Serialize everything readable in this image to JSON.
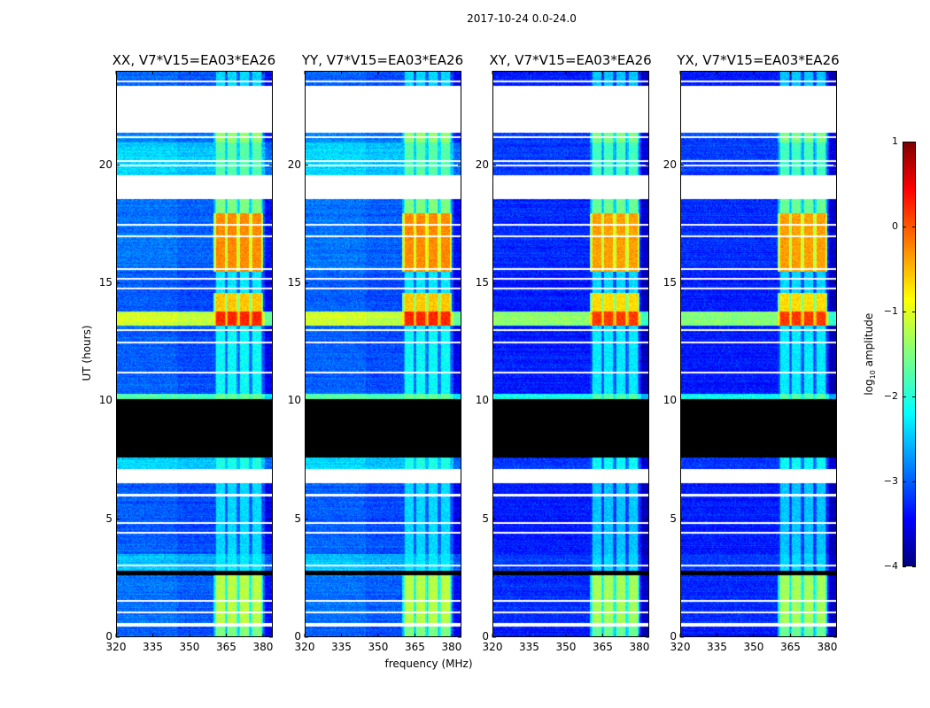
{
  "figure_title": "2017-10-24 0.0-24.0",
  "chart_data": {
    "type": "heatmap",
    "title": "2017-10-24 0.0-24.0",
    "xlabel": "frequency (MHz)",
    "ylabel": "UT (hours)",
    "xlim": [
      320,
      384
    ],
    "ylim": [
      0,
      24
    ],
    "xticks": [
      320,
      335,
      350,
      365,
      380
    ],
    "yticks": [
      0,
      5,
      10,
      15,
      20
    ],
    "panels": [
      {
        "title": "XX, V7*V15=EA03*EA26",
        "pol": "XX",
        "bg_offset": 0
      },
      {
        "title": "YY, V7*V15=EA03*EA26",
        "pol": "YY",
        "bg_offset": 0
      },
      {
        "title": "XY, V7*V15=EA03*EA26",
        "pol": "XY",
        "bg_offset": -0.25
      },
      {
        "title": "YX, V7*V15=EA03*EA26",
        "pol": "YX",
        "bg_offset": -0.25
      }
    ],
    "rfi_channels_mhz": [
      [
        360.5,
        365
      ],
      [
        365.3,
        370
      ],
      [
        370.3,
        375
      ],
      [
        375.3,
        380
      ]
    ],
    "segments_hours": [
      {
        "start": 0,
        "end": 0.4,
        "bg": -3.0,
        "rfi": -1.5
      },
      {
        "start": 0.4,
        "end": 0.55,
        "flag": "blank"
      },
      {
        "start": 0.55,
        "end": 2.6,
        "bg": -2.9,
        "rfi": -1.2
      },
      {
        "start": 2.6,
        "end": 2.8,
        "flag": "zero"
      },
      {
        "start": 2.8,
        "end": 3.5,
        "bg": -2.5,
        "rfi": -2.2
      },
      {
        "start": 3.5,
        "end": 6.5,
        "bg": -3.0,
        "rfi": -2.3
      },
      {
        "start": 6.5,
        "end": 7.1,
        "flag": "blank"
      },
      {
        "start": 7.1,
        "end": 7.6,
        "bg": -2.4,
        "rfi": -2.0
      },
      {
        "start": 7.6,
        "end": 10.1,
        "flag": "zero"
      },
      {
        "start": 10.1,
        "end": 10.3,
        "bg": -1.8,
        "rfi": -1.6
      },
      {
        "start": 10.3,
        "end": 13.2,
        "bg": -3.0,
        "rfi": -2.1
      },
      {
        "start": 13.2,
        "end": 13.8,
        "bg": -1.2,
        "rfi": 0.2
      },
      {
        "start": 13.8,
        "end": 14.6,
        "bg": -3.0,
        "rfi": -0.6
      },
      {
        "start": 14.6,
        "end": 15.5,
        "bg": -3.0,
        "rfi": -2.2
      },
      {
        "start": 15.5,
        "end": 18.0,
        "bg": -2.9,
        "rfi": -0.3
      },
      {
        "start": 18.0,
        "end": 18.6,
        "bg": -2.9,
        "rfi": -1.5
      },
      {
        "start": 18.6,
        "end": 19.6,
        "flag": "blank"
      },
      {
        "start": 19.6,
        "end": 21.0,
        "bg": -2.4,
        "rfi": -1.7
      },
      {
        "start": 21.0,
        "end": 21.4,
        "bg": -2.8,
        "rfi": -1.4
      },
      {
        "start": 21.4,
        "end": 23.4,
        "flag": "blank"
      },
      {
        "start": 23.4,
        "end": 24,
        "bg": -3.0,
        "rfi": -2.3
      }
    ],
    "flag_lines_hours": [
      1.0,
      1.5,
      3.0,
      4.4,
      4.8,
      6.0,
      11.2,
      12.5,
      13.0,
      14.8,
      15.2,
      15.6,
      17.0,
      17.5,
      20.0,
      20.2,
      21.2,
      21.6,
      23.6
    ],
    "colorbar": {
      "label": "log10 amplitude",
      "range": [
        -4,
        1
      ],
      "ticks": [
        -4,
        -3,
        -2,
        -1,
        0,
        1
      ],
      "colormap": "jet"
    }
  }
}
